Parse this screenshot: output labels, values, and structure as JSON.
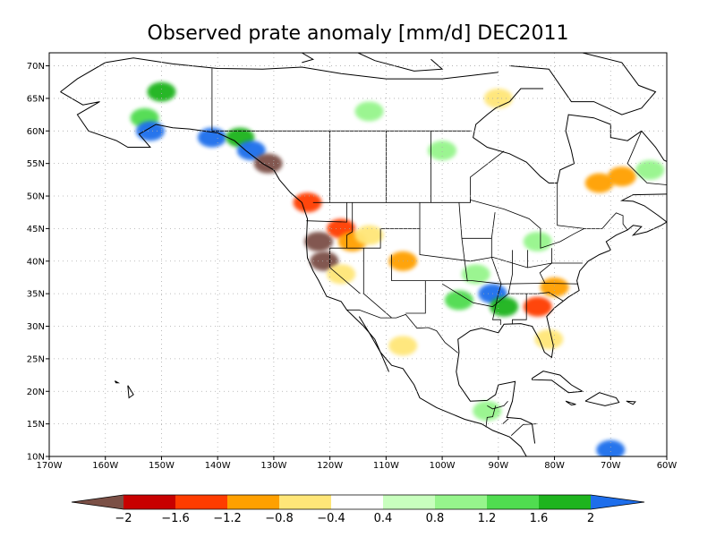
{
  "chart_data": {
    "type": "heatmap",
    "title": "Observed prate anomaly [mm/d] DEC2011",
    "x_ticks": [
      "170W",
      "160W",
      "150W",
      "140W",
      "130W",
      "120W",
      "110W",
      "100W",
      "90W",
      "80W",
      "70W",
      "60W"
    ],
    "y_ticks": [
      "10N",
      "15N",
      "20N",
      "25N",
      "30N",
      "35N",
      "40N",
      "45N",
      "50N",
      "55N",
      "60N",
      "65N",
      "70N"
    ],
    "xlim": [
      -170,
      -60
    ],
    "ylim": [
      10,
      72
    ],
    "grid": true,
    "colorbar": {
      "labels": [
        "-2",
        "-1.6",
        "-1.2",
        "-0.8",
        "-0.4",
        "0.4",
        "0.8",
        "1.2",
        "1.6",
        "2"
      ],
      "colors": [
        "#7b5046",
        "#c80000",
        "#ff3c00",
        "#ffa000",
        "#ffe678",
        "#ffffff",
        "#c8ffbe",
        "#96f58c",
        "#50dc50",
        "#1eb41e",
        "#1e6eeb"
      ]
    },
    "fields": [
      {
        "lon": -150,
        "lat": 66,
        "value": 1.6
      },
      {
        "lon": -153,
        "lat": 62,
        "value": 1.2
      },
      {
        "lon": -152,
        "lat": 60,
        "value": 2.2
      },
      {
        "lon": -141,
        "lat": 59,
        "value": 2.2
      },
      {
        "lon": -136,
        "lat": 59,
        "value": 1.6
      },
      {
        "lon": -134,
        "lat": 57,
        "value": 2.2
      },
      {
        "lon": -131,
        "lat": 55,
        "value": -2.2
      },
      {
        "lon": -124,
        "lat": 49,
        "value": -1.6
      },
      {
        "lon": -122,
        "lat": 43,
        "value": -2.2
      },
      {
        "lon": -121,
        "lat": 40,
        "value": -2.2
      },
      {
        "lon": -118,
        "lat": 45,
        "value": -1.4
      },
      {
        "lon": -116,
        "lat": 43,
        "value": -0.9
      },
      {
        "lon": -113,
        "lat": 44,
        "value": -0.6
      },
      {
        "lon": -118,
        "lat": 38,
        "value": -0.6
      },
      {
        "lon": -107,
        "lat": 40,
        "value": -0.9
      },
      {
        "lon": -97,
        "lat": 34,
        "value": 1.2
      },
      {
        "lon": -91,
        "lat": 35,
        "value": 2.2
      },
      {
        "lon": -94,
        "lat": 38,
        "value": 1.0
      },
      {
        "lon": -89,
        "lat": 33,
        "value": 1.6
      },
      {
        "lon": -83,
        "lat": 33,
        "value": -1.4
      },
      {
        "lon": -80,
        "lat": 36,
        "value": -1.2
      },
      {
        "lon": -81,
        "lat": 28,
        "value": -0.8
      },
      {
        "lon": -72,
        "lat": 52,
        "value": -1.0
      },
      {
        "lon": -68,
        "lat": 53,
        "value": -0.9
      },
      {
        "lon": -63,
        "lat": 54,
        "value": 1.0
      },
      {
        "lon": -83,
        "lat": 43,
        "value": 1.0
      },
      {
        "lon": -100,
        "lat": 57,
        "value": 1.0
      },
      {
        "lon": -90,
        "lat": 65,
        "value": -0.6
      },
      {
        "lon": -113,
        "lat": 63,
        "value": 0.8
      },
      {
        "lon": -107,
        "lat": 27,
        "value": -0.6
      },
      {
        "lon": -92,
        "lat": 17,
        "value": 0.8
      },
      {
        "lon": -70,
        "lat": 11,
        "value": 2.2
      }
    ]
  }
}
